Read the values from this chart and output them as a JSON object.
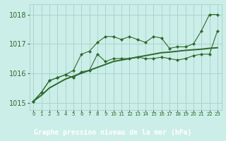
{
  "title": "Graphe pression niveau de la mer (hPa)",
  "x_labels": [
    "0",
    "1",
    "2",
    "3",
    "4",
    "5",
    "6",
    "7",
    "8",
    "9",
    "10",
    "11",
    "12",
    "13",
    "14",
    "15",
    "16",
    "17",
    "18",
    "19",
    "20",
    "21",
    "22",
    "23"
  ],
  "x_values": [
    0,
    1,
    2,
    3,
    4,
    5,
    6,
    7,
    8,
    9,
    10,
    11,
    12,
    13,
    14,
    15,
    16,
    17,
    18,
    19,
    20,
    21,
    22,
    23
  ],
  "line_upper": [
    1015.05,
    1015.35,
    1015.75,
    1015.85,
    1015.95,
    1016.1,
    1016.65,
    1016.75,
    1017.05,
    1017.25,
    1017.25,
    1017.15,
    1017.25,
    1017.15,
    1017.05,
    1017.25,
    1017.2,
    1016.85,
    1016.9,
    1016.9,
    1017.0,
    1017.45,
    1018.0,
    1018.0
  ],
  "line_lower": [
    1015.05,
    1015.35,
    1015.75,
    1015.85,
    1015.95,
    1015.85,
    1016.05,
    1016.1,
    1016.65,
    1016.4,
    1016.5,
    1016.5,
    1016.5,
    1016.55,
    1016.5,
    1016.5,
    1016.55,
    1016.5,
    1016.45,
    1016.5,
    1016.6,
    1016.65,
    1016.65,
    1017.45
  ],
  "line_trend": [
    1015.05,
    1015.25,
    1015.5,
    1015.65,
    1015.8,
    1015.9,
    1016.0,
    1016.1,
    1016.2,
    1016.3,
    1016.4,
    1016.45,
    1016.5,
    1016.55,
    1016.6,
    1016.65,
    1016.7,
    1016.72,
    1016.75,
    1016.78,
    1016.8,
    1016.82,
    1016.85,
    1016.87
  ],
  "line_color": "#2d6a2d",
  "bg_color": "#cceee8",
  "grid_color": "#a8d4ce",
  "ylim": [
    1014.75,
    1018.35
  ],
  "yticks": [
    1015,
    1016,
    1017,
    1018
  ],
  "title_bg": "#2d6a2d",
  "title_fg": "#ffffff",
  "ylabel_fontsize": 7,
  "xlabel_fontsize": 5,
  "title_fontsize": 7
}
